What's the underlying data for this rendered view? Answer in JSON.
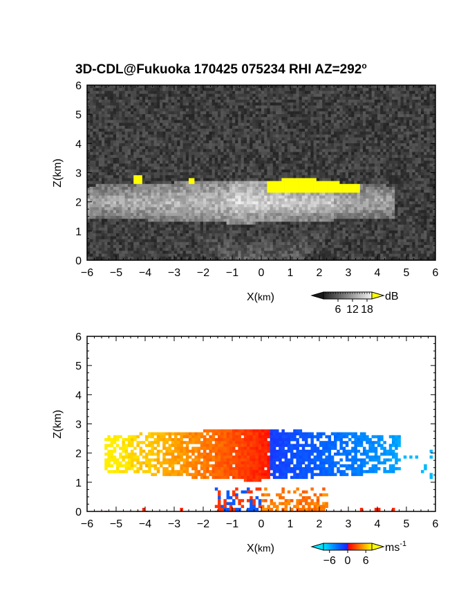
{
  "title_prefix": "3D-CDL@Fukuoka 170425 075234 RHI AZ=292",
  "title_degree": "o",
  "chart_data": [
    {
      "type": "heatmap",
      "quantity": "backscatter intensity",
      "xlabel_base": "X(",
      "xlabel_unit": "km",
      "xlabel_close": ")",
      "ylabel": "Z(km)",
      "xlim": [
        -6,
        6
      ],
      "ylim": [
        0,
        6
      ],
      "xticks": [
        "-6",
        "-5",
        "-4",
        "-3",
        "-2",
        "-1",
        "0",
        "1",
        "2",
        "3",
        "4",
        "5",
        "6"
      ],
      "yticks": [
        "0",
        "1",
        "2",
        "3",
        "4",
        "5",
        "6"
      ],
      "grid": false,
      "background": "noise, dark gray",
      "colorbar": {
        "unit": "dB",
        "ticks": [
          "6",
          "12",
          "18"
        ],
        "tick_values": [
          6,
          12,
          18
        ],
        "range": [
          0,
          20
        ],
        "colors": [
          "#1a1a1a",
          "#ffffff"
        ],
        "overflow_color": "#ffff00"
      },
      "features": [
        {
          "name": "cloud layer",
          "x_range": [
            -6,
            4.5
          ],
          "z_range": [
            1.2,
            2.8
          ]
        },
        {
          "name": "saturated region (>18 dB)",
          "x_range": [
            0.2,
            3.3
          ],
          "z_range": [
            2.3,
            2.9
          ]
        }
      ]
    },
    {
      "type": "heatmap",
      "quantity": "Doppler velocity",
      "xlabel_base": "X(",
      "xlabel_unit": "km",
      "xlabel_close": ")",
      "ylabel": "Z(km)",
      "xlim": [
        -6,
        6
      ],
      "ylim": [
        0,
        6
      ],
      "xticks": [
        "-6",
        "-5",
        "-4",
        "-3",
        "-2",
        "-1",
        "0",
        "1",
        "2",
        "3",
        "4",
        "5",
        "6"
      ],
      "yticks": [
        "0",
        "1",
        "2",
        "3",
        "4",
        "5",
        "6"
      ],
      "grid": false,
      "background": "white",
      "colorbar": {
        "unit_base": "ms",
        "unit_exp": "-1",
        "ticks": [
          "-6",
          "0",
          "6"
        ],
        "tick_values": [
          -6,
          0,
          6
        ],
        "range": [
          -8,
          8
        ],
        "colors": [
          "#00e5ff",
          "#0050ff",
          "#1a1aff",
          "#ff0000",
          "#ff7000",
          "#ffff00"
        ]
      },
      "features": [
        {
          "name": "negative velocities",
          "x_range": [
            0.2,
            4.7
          ],
          "z_range": [
            1.0,
            3.0
          ],
          "value_range": [
            -6,
            -1
          ]
        },
        {
          "name": "positive velocities",
          "x_range": [
            -5.4,
            0.2
          ],
          "z_range": [
            1.0,
            3.0
          ],
          "value_range": [
            1,
            7
          ]
        },
        {
          "name": "near-surface echoes",
          "x_range": [
            -1.5,
            2.3
          ],
          "z_range": [
            0.0,
            0.9
          ]
        }
      ]
    }
  ]
}
